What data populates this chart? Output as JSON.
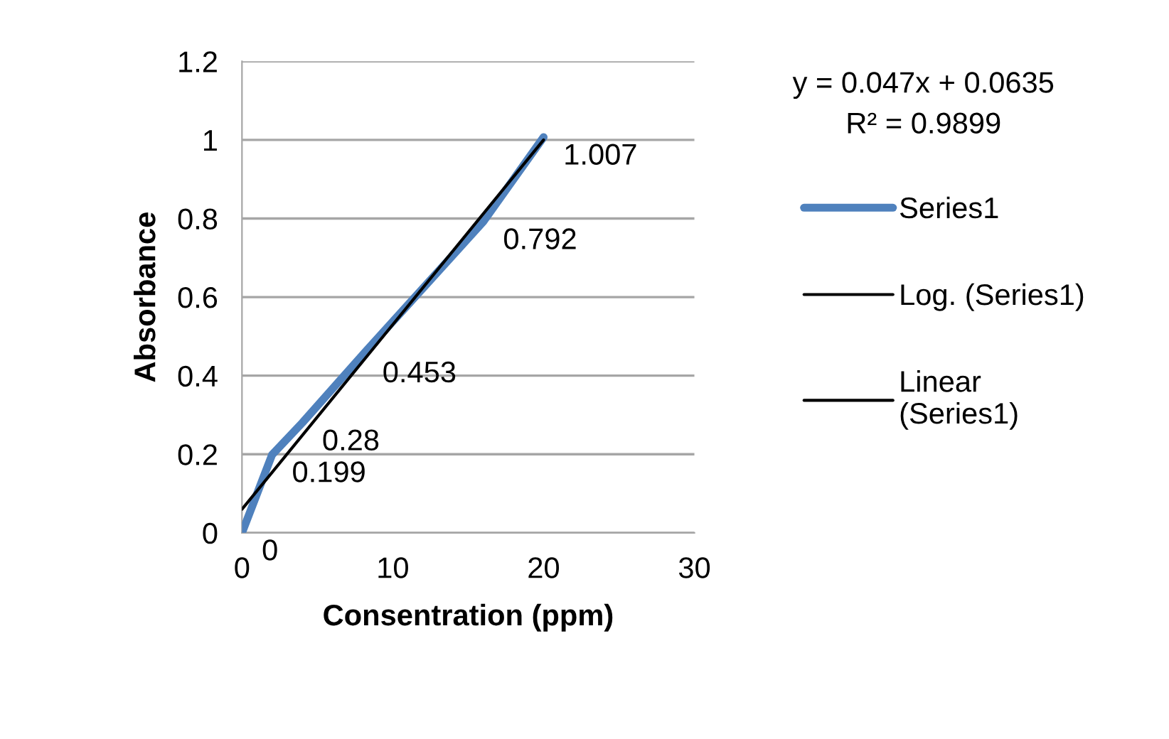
{
  "chart_data": {
    "type": "line",
    "xlabel": "Consentration (ppm)",
    "ylabel": "Absorbance",
    "x": [
      0,
      2,
      4,
      8,
      16,
      20
    ],
    "series": [
      {
        "name": "Series1",
        "color": "#4f81bd",
        "values": [
          0,
          0.199,
          0.28,
          0.453,
          0.792,
          1.007
        ],
        "data_labels": true
      },
      {
        "name": "Log. (Series1)",
        "color": "#000000",
        "values": [
          null,
          null,
          null,
          null,
          null,
          null
        ]
      },
      {
        "name": "Linear (Series1)",
        "color": "#000000",
        "x": [
          0,
          20
        ],
        "values": [
          0.06,
          1.0
        ]
      }
    ],
    "annotations": [
      "y = 0.047x + 0.0635",
      "R² = 0.9899"
    ],
    "xlim": [
      0,
      30
    ],
    "xticks": [
      0,
      10,
      20,
      30
    ],
    "ylim": [
      0,
      1.2
    ],
    "yticks": [
      0,
      0.2,
      0.4,
      0.6,
      0.8,
      1,
      1.2
    ],
    "grid": "y",
    "legend": "right",
    "marker": "none",
    "line_style": "solid"
  }
}
